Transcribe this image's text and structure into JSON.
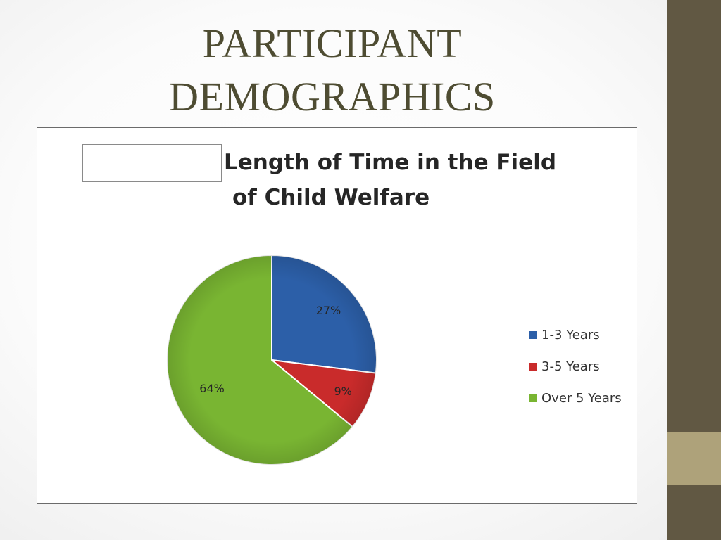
{
  "slide": {
    "title_line1": "PARTICIPANT",
    "title_line2": "DEMOGRAPHICS"
  },
  "colors": {
    "sidebar": "#615843",
    "sidebar_accent": "#aea27a",
    "title": "#4e4c32"
  },
  "chart_data": {
    "type": "pie",
    "title": "Length of Time in the Field of Child Welfare",
    "title_line1": "Length of Time in the Field",
    "title_line2": "of Child Welfare",
    "categories": [
      "1-3 Years",
      "3-5 Years",
      "Over 5 Years"
    ],
    "values": [
      27,
      9,
      64
    ],
    "data_labels": [
      "27%",
      "9%",
      "64%"
    ],
    "colors": [
      "#2c5fa8",
      "#c92b2b",
      "#79b532"
    ],
    "start": "12 o'clock",
    "direction": "clockwise",
    "legend_position": "right"
  }
}
